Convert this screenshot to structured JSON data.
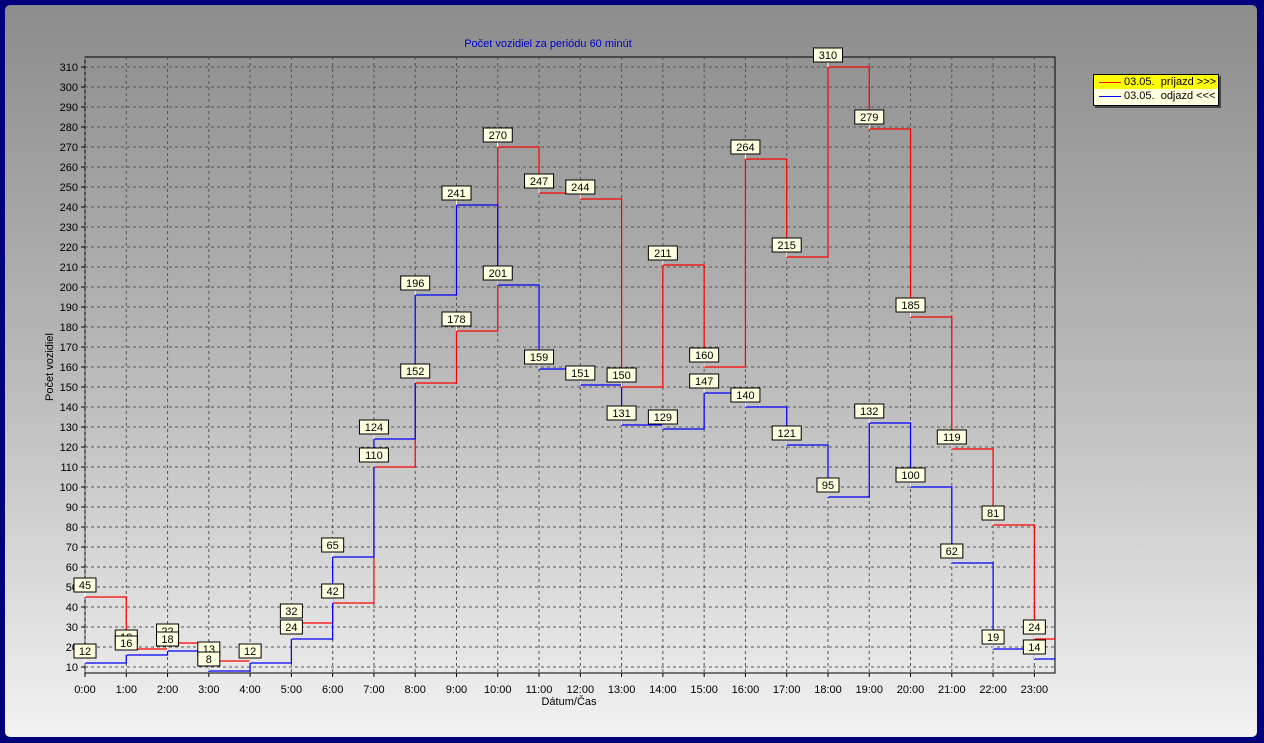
{
  "chart_data": {
    "type": "line",
    "step": true,
    "title": "Počet vozidiel za periódu 60 minút",
    "xlabel": "Dátum/Čas",
    "ylabel": "Počet vozidiel",
    "categories": [
      "0:00",
      "1:00",
      "2:00",
      "3:00",
      "4:00",
      "5:00",
      "6:00",
      "7:00",
      "8:00",
      "9:00",
      "10:00",
      "11:00",
      "12:00",
      "13:00",
      "14:00",
      "15:00",
      "16:00",
      "17:00",
      "18:00",
      "19:00",
      "20:00",
      "21:00",
      "22:00",
      "23:00"
    ],
    "yticks": [
      10,
      20,
      30,
      40,
      50,
      60,
      70,
      80,
      90,
      100,
      110,
      120,
      130,
      140,
      150,
      160,
      170,
      180,
      190,
      200,
      210,
      220,
      230,
      240,
      250,
      260,
      270,
      280,
      290,
      300,
      310
    ],
    "ylim": [
      7,
      315
    ],
    "grid": true,
    "legend_position": "top-right",
    "series": [
      {
        "name": "03.05.  príjazd >>>",
        "color": "#ff0000",
        "values": [
          45,
          19,
          22,
          13,
          null,
          32,
          42,
          110,
          152,
          178,
          270,
          247,
          244,
          150,
          211,
          160,
          264,
          215,
          310,
          279,
          185,
          119,
          81,
          24
        ]
      },
      {
        "name": "03.05.  odjazd <<<",
        "color": "#0000ff",
        "values": [
          12,
          16,
          18,
          8,
          12,
          24,
          65,
          124,
          196,
          241,
          201,
          159,
          151,
          131,
          129,
          147,
          140,
          121,
          95,
          132,
          100,
          62,
          19,
          14
        ]
      }
    ]
  },
  "legend": {
    "items": [
      {
        "label": "03.05.  príjazd >>>",
        "color": "#ff0000"
      },
      {
        "label": "03.05.  odjazd <<<",
        "color": "#0000ff"
      }
    ]
  }
}
